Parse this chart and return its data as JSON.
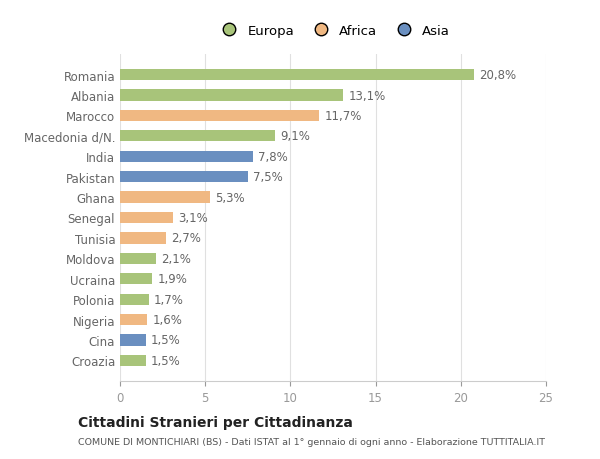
{
  "categories": [
    "Romania",
    "Albania",
    "Marocco",
    "Macedonia d/N.",
    "India",
    "Pakistan",
    "Ghana",
    "Senegal",
    "Tunisia",
    "Moldova",
    "Ucraina",
    "Polonia",
    "Nigeria",
    "Cina",
    "Croazia"
  ],
  "values": [
    20.8,
    13.1,
    11.7,
    9.1,
    7.8,
    7.5,
    5.3,
    3.1,
    2.7,
    2.1,
    1.9,
    1.7,
    1.6,
    1.5,
    1.5
  ],
  "labels": [
    "20,8%",
    "13,1%",
    "11,7%",
    "9,1%",
    "7,8%",
    "7,5%",
    "5,3%",
    "3,1%",
    "2,7%",
    "2,1%",
    "1,9%",
    "1,7%",
    "1,6%",
    "1,5%",
    "1,5%"
  ],
  "continents": [
    "Europa",
    "Europa",
    "Africa",
    "Europa",
    "Asia",
    "Asia",
    "Africa",
    "Africa",
    "Africa",
    "Europa",
    "Europa",
    "Europa",
    "Africa",
    "Asia",
    "Europa"
  ],
  "continent_colors": {
    "Europa": "#a8c47a",
    "Africa": "#f0b882",
    "Asia": "#6a8fc0"
  },
  "legend_items": [
    "Europa",
    "Africa",
    "Asia"
  ],
  "legend_colors": [
    "#a8c47a",
    "#f0b882",
    "#6a8fc0"
  ],
  "xlim": [
    0,
    25
  ],
  "xticks": [
    0,
    5,
    10,
    15,
    20,
    25
  ],
  "title": "Cittadini Stranieri per Cittadinanza",
  "subtitle": "COMUNE DI MONTICHIARI (BS) - Dati ISTAT al 1° gennaio di ogni anno - Elaborazione TUTTITALIA.IT",
  "background_color": "#ffffff",
  "bar_height": 0.55,
  "label_fontsize": 8.5,
  "tick_fontsize": 8.5,
  "legend_fontsize": 9.5
}
